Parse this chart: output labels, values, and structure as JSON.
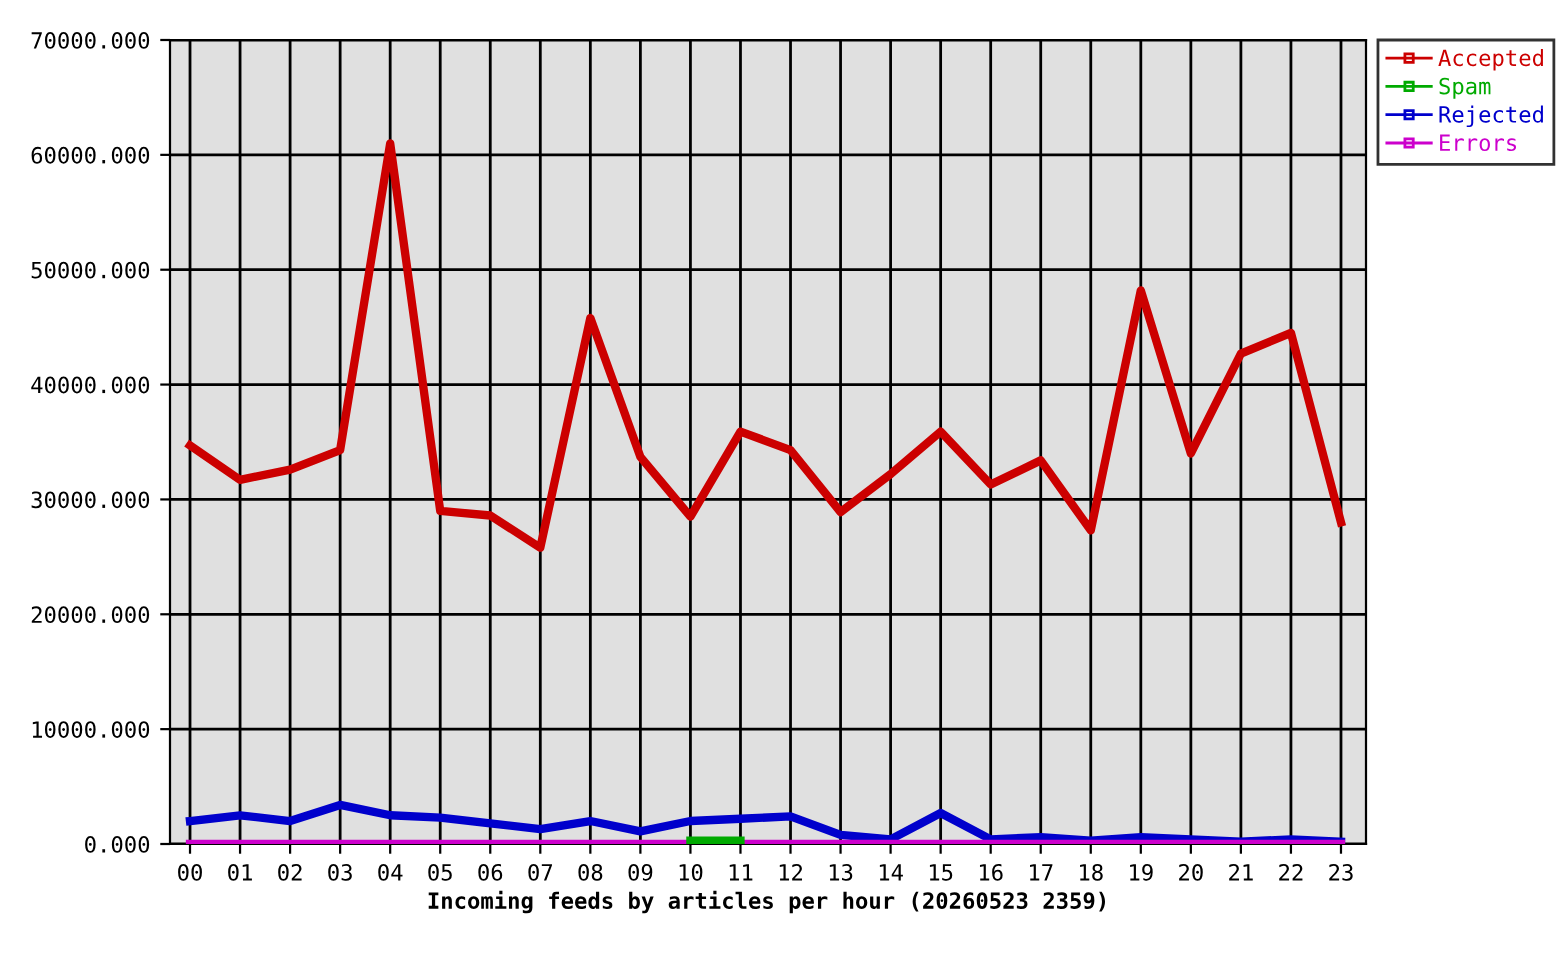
{
  "chart_data": {
    "type": "line",
    "xlabel": "Incoming feeds by articles per hour (20260523 2359)",
    "categories": [
      "00",
      "01",
      "02",
      "03",
      "04",
      "05",
      "06",
      "07",
      "08",
      "09",
      "10",
      "11",
      "12",
      "13",
      "14",
      "15",
      "16",
      "17",
      "18",
      "19",
      "20",
      "21",
      "22",
      "23"
    ],
    "series": [
      {
        "name": "Accepted",
        "color": "#cc0000",
        "values": [
          34700,
          31700,
          32600,
          34300,
          61000,
          29000,
          28600,
          25800,
          45800,
          33700,
          28500,
          35900,
          34300,
          28900,
          32200,
          35900,
          31300,
          33400,
          27300,
          48200,
          34000,
          42700,
          44500,
          28000
        ]
      },
      {
        "name": "Spam",
        "color": "#00aa00",
        "values": [
          null,
          null,
          null,
          null,
          null,
          null,
          null,
          null,
          null,
          null,
          300,
          300,
          null,
          null,
          null,
          null,
          null,
          null,
          null,
          null,
          null,
          null,
          null,
          null
        ]
      },
      {
        "name": "Rejected",
        "color": "#0000cc",
        "values": [
          2000,
          2500,
          2000,
          3400,
          2500,
          2300,
          1800,
          1300,
          2000,
          1100,
          2000,
          2200,
          2400,
          800,
          400,
          2700,
          400,
          600,
          300,
          600,
          400,
          200,
          400,
          200
        ]
      },
      {
        "name": "Errors",
        "color": "#cc00cc",
        "values": [
          0,
          0,
          0,
          0,
          0,
          0,
          0,
          0,
          0,
          0,
          0,
          0,
          0,
          0,
          0,
          0,
          0,
          0,
          0,
          0,
          0,
          0,
          0,
          0
        ]
      }
    ],
    "ylim": [
      0,
      70000
    ],
    "yticks": [
      {
        "value": 0,
        "label": "0.000"
      },
      {
        "value": 10000,
        "label": "10000.000"
      },
      {
        "value": 20000,
        "label": "20000.000"
      },
      {
        "value": 30000,
        "label": "30000.000"
      },
      {
        "value": 40000,
        "label": "40000.000"
      },
      {
        "value": 50000,
        "label": "50000.000"
      },
      {
        "value": 60000,
        "label": "60000.000"
      },
      {
        "value": 70000,
        "label": "70000.000"
      }
    ],
    "grid": true,
    "legend": "top right",
    "marker": "none",
    "line_style": "solid"
  }
}
